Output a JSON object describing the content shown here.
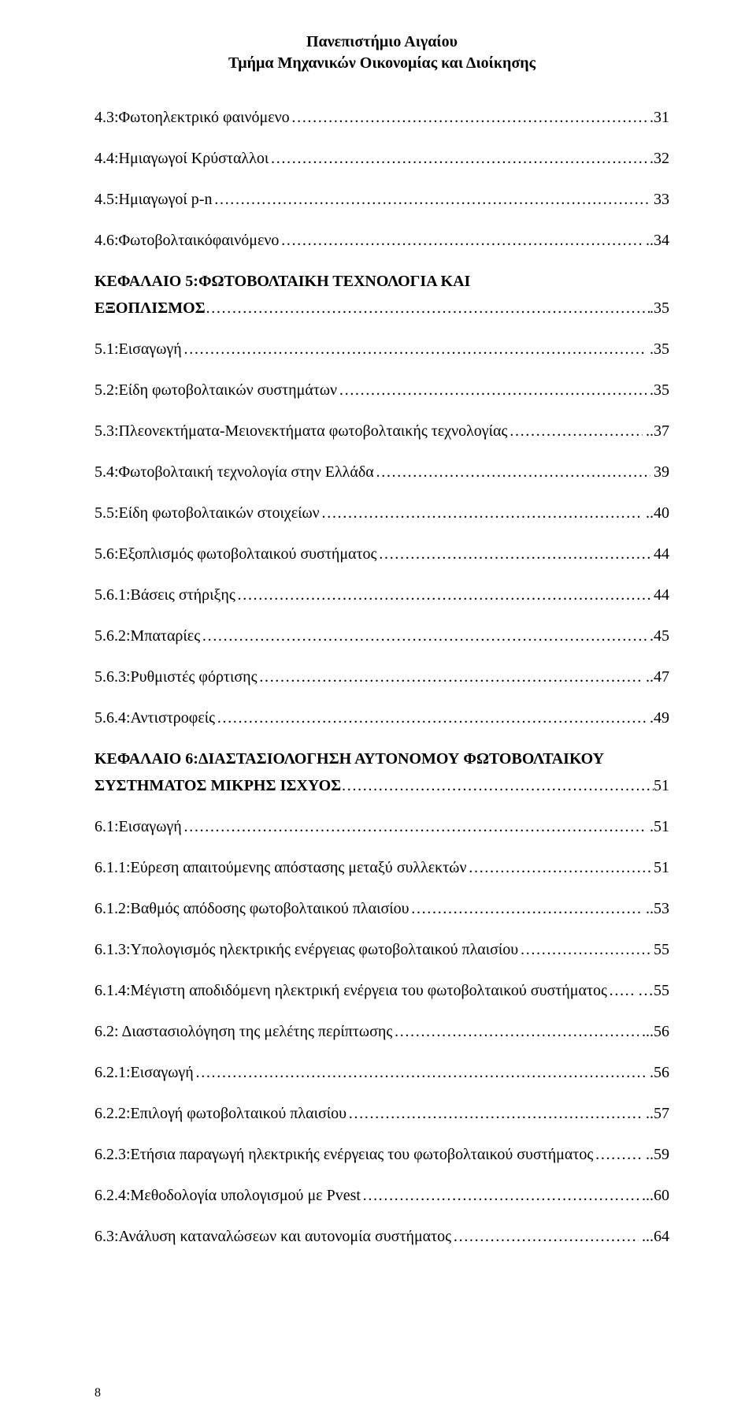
{
  "header": {
    "line1": "Πανεπιστήμιο Αιγαίου",
    "line2": "Τμήμα Μηχανικών Οικονομίας και Διοίκησης"
  },
  "toc": [
    {
      "type": "entry",
      "label": "4.3:Φωτοηλεκτρικό φαινόμενο",
      "page": ".31"
    },
    {
      "type": "entry",
      "label": "4.4:Ημιαγωγοί Κρύσταλλοι",
      "page": ".32"
    },
    {
      "type": "entry",
      "label": "4.5:Ημιαγωγοί p-n",
      "page": "33"
    },
    {
      "type": "entry",
      "label": "4.6:Φωτοβολταικόφαινόμενο",
      "page": "..34"
    },
    {
      "type": "chapter2",
      "line1": "ΚΕΦΑΛΑΙΟ 5:ΦΩΤΟΒΟΛΤΑΙΚΗ ΤΕΧΝΟΛΟΓΙΑ ΚΑΙ",
      "line2": "ΕΞΟΠΛΙΣΜΟΣ",
      "page": ".35"
    },
    {
      "type": "entry",
      "label": "5.1:Εισαγωγή",
      "page": ".35"
    },
    {
      "type": "entry",
      "label": "5.2:Είδη φωτοβολταικών συστημάτων",
      "page": ".35"
    },
    {
      "type": "entry",
      "label": "5.3:Πλεονεκτήματα-Μειονεκτήματα φωτοβολταικής τεχνολογίας",
      "page": "..37"
    },
    {
      "type": "entry",
      "label": "5.4:Φωτοβολταική τεχνολογία στην Ελλάδα",
      "page": "39"
    },
    {
      "type": "entry",
      "label": "5.5:Είδη φωτοβολταικών στοιχείων",
      "page": "..40"
    },
    {
      "type": "entry",
      "label": "5.6:Εξοπλισμός φωτοβολταικού συστήματος",
      "page": "44"
    },
    {
      "type": "entry",
      "label": "5.6.1:Βάσεις στήριξης",
      "page": "44"
    },
    {
      "type": "entry",
      "label": "5.6.2:Μπαταρίες",
      "page": ".45"
    },
    {
      "type": "entry",
      "label": "5.6.3:Ρυθμιστές φόρτισης",
      "page": "..47"
    },
    {
      "type": "entry",
      "label": "5.6.4:Αντιστροφείς",
      "page": ".49"
    },
    {
      "type": "chapter2",
      "line1": "ΚΕΦΑΛΑΙΟ 6:ΔΙΑΣΤΑΣΙΟΛΟΓΗΣΗ ΑΥΤΟΝΟΜΟΥ ΦΩΤΟΒΟΛΤΑΙΚΟΥ",
      "line2": "ΣΥΣΤΗΜΑΤΟΣ ΜΙΚΡΗΣ ΙΣΧΥΟΣ",
      "page": "51"
    },
    {
      "type": "entry",
      "label": "6.1:Εισαγωγή",
      "page": ".51"
    },
    {
      "type": "entry",
      "label": "6.1.1:Εύρεση απαιτούμενης απόστασης μεταξύ συλλεκτών",
      "page": "51"
    },
    {
      "type": "entry",
      "label": "6.1.2:Βαθμός απόδοσης φωτοβολταικού πλαισίου",
      "page": "..53"
    },
    {
      "type": "entry",
      "label": "6.1.3:Υπολογισμός ηλεκτρικής ενέργειας φωτοβολταικού πλαισίου",
      "page": "55"
    },
    {
      "type": "entry",
      "label": "6.1.4:Μέγιστη αποδιδόμενη ηλεκτρική ενέργεια του φωτοβολταικού συστήματος",
      "page": "…55"
    },
    {
      "type": "entry",
      "label": "6.2: Διαστασιολόγηση της μελέτης περίπτωσης",
      "page": "...56"
    },
    {
      "type": "entry",
      "label": "6.2.1:Εισαγωγή",
      "page": ".56"
    },
    {
      "type": "entry",
      "label": "6.2.2:Επιλογή φωτοβολταικού πλαισίου",
      "page": "..57"
    },
    {
      "type": "entry",
      "label": "6.2.3:Ετήσια παραγωγή ηλεκτρικής ενέργειας του φωτοβολταικού συστήματος",
      "page": "..59"
    },
    {
      "type": "entry",
      "label": "6.2.4:Μεθοδολογία υπολογισμού με Pvest",
      "page": "...60"
    },
    {
      "type": "entry",
      "label": "6.3:Ανάλυση καταναλώσεων και αυτονομία συστήματος",
      "page": "...64"
    }
  ],
  "pageNumber": "8"
}
